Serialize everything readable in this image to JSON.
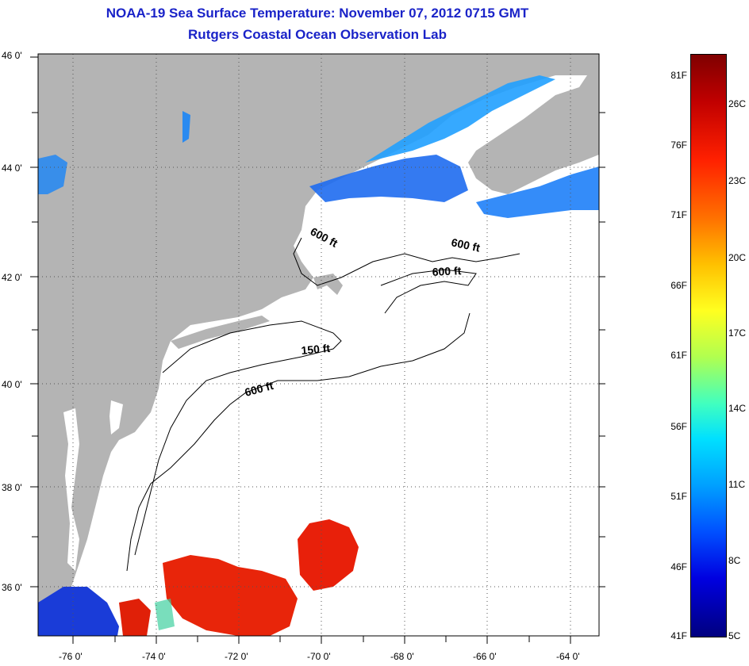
{
  "title": {
    "line1": "NOAA-19 Sea Surface Temperature:  November 07, 2012 0715 GMT",
    "line2": "Rutgers Coastal Ocean Observation Lab"
  },
  "map": {
    "lat_labels": [
      "46 0'",
      "44 0'",
      "42 0'",
      "40 0'",
      "38 0'",
      "36 0'"
    ],
    "lon_labels": [
      "-76 0'",
      "-74 0'",
      "-72 0'",
      "-70 0'",
      "-68 0'",
      "-66 0'",
      "-64 0'"
    ],
    "lat_range": [
      35,
      46
    ],
    "lon_range": [
      -77,
      -63.5
    ],
    "grid": "dotted",
    "isobath_labels": [
      "600 ft",
      "600 ft",
      "600 ft",
      "150 ft",
      "600 ft"
    ],
    "colors": {
      "land": "#b4b4b4",
      "cloud": "#ffffff",
      "cold_water": "#1e90ff",
      "warm_water": "#e81e0a"
    }
  },
  "colorbar": {
    "fahrenheit": [
      "81F",
      "76F",
      "71F",
      "66F",
      "61F",
      "56F",
      "51F",
      "46F",
      "41F"
    ],
    "celsius": [
      "26C",
      "23C",
      "20C",
      "17C",
      "14C",
      "11C",
      "8C",
      "5C"
    ]
  }
}
